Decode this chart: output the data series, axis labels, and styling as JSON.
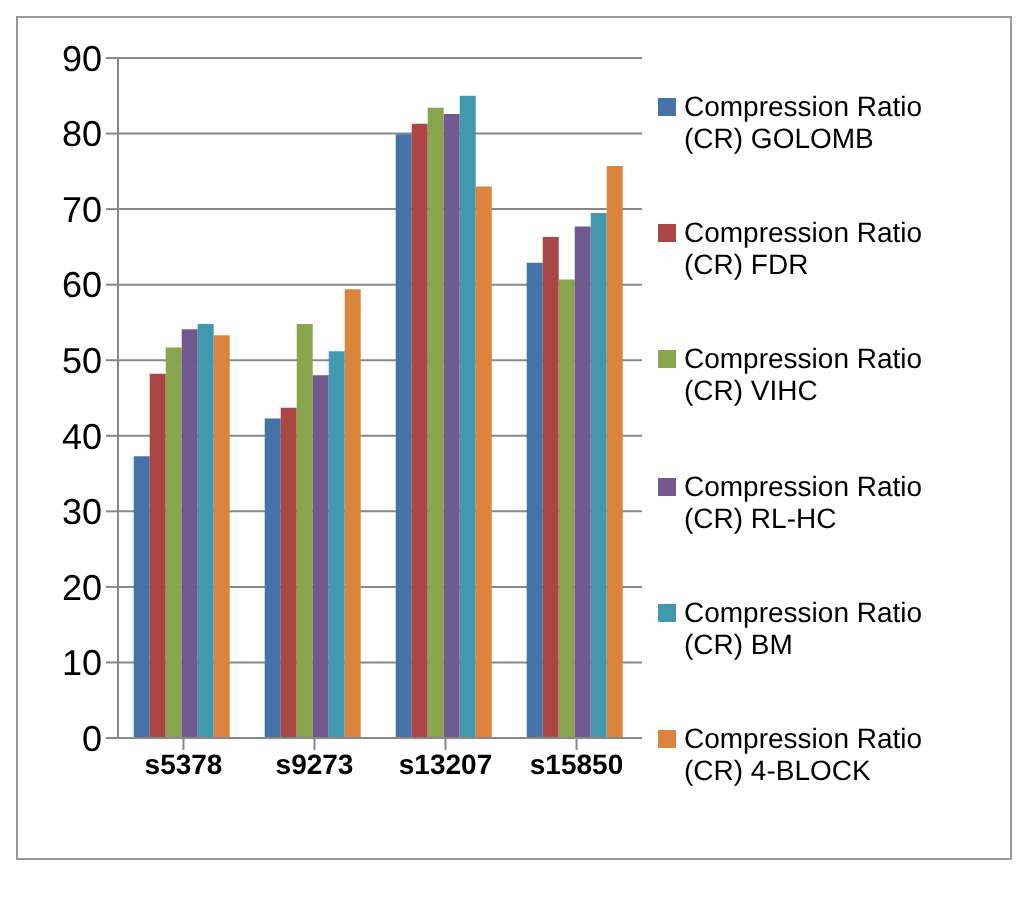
{
  "chart_data": {
    "type": "bar",
    "categories": [
      "s5378",
      "s9273",
      "s13207",
      "s15850"
    ],
    "series": [
      {
        "name": "Compression Ratio (CR) GOLOMB",
        "color": "#4572a7",
        "values": [
          37.3,
          42.3,
          79.9,
          62.9
        ]
      },
      {
        "name": "Compression Ratio (CR) FDR",
        "color": "#aa4643",
        "values": [
          48.2,
          43.7,
          81.3,
          66.3
        ]
      },
      {
        "name": "Compression Ratio (CR) VIHC",
        "color": "#89a54e",
        "values": [
          51.7,
          54.8,
          83.4,
          60.7
        ]
      },
      {
        "name": "Compression Ratio (CR) RL-HC",
        "color": "#71588f",
        "values": [
          54.1,
          48,
          82.6,
          67.7
        ]
      },
      {
        "name": "Compression Ratio (CR) BM",
        "color": "#4198af",
        "values": [
          54.8,
          51.2,
          85,
          69.5
        ]
      },
      {
        "name": "Compression Ratio (CR) 4-BLOCK",
        "color": "#db843d",
        "values": [
          53.3,
          59.4,
          73,
          75.7
        ]
      }
    ],
    "ylim": [
      0,
      90
    ],
    "yticks": [
      0,
      10,
      20,
      30,
      40,
      50,
      60,
      70,
      80,
      90
    ],
    "grid": "y",
    "legend": "right"
  }
}
